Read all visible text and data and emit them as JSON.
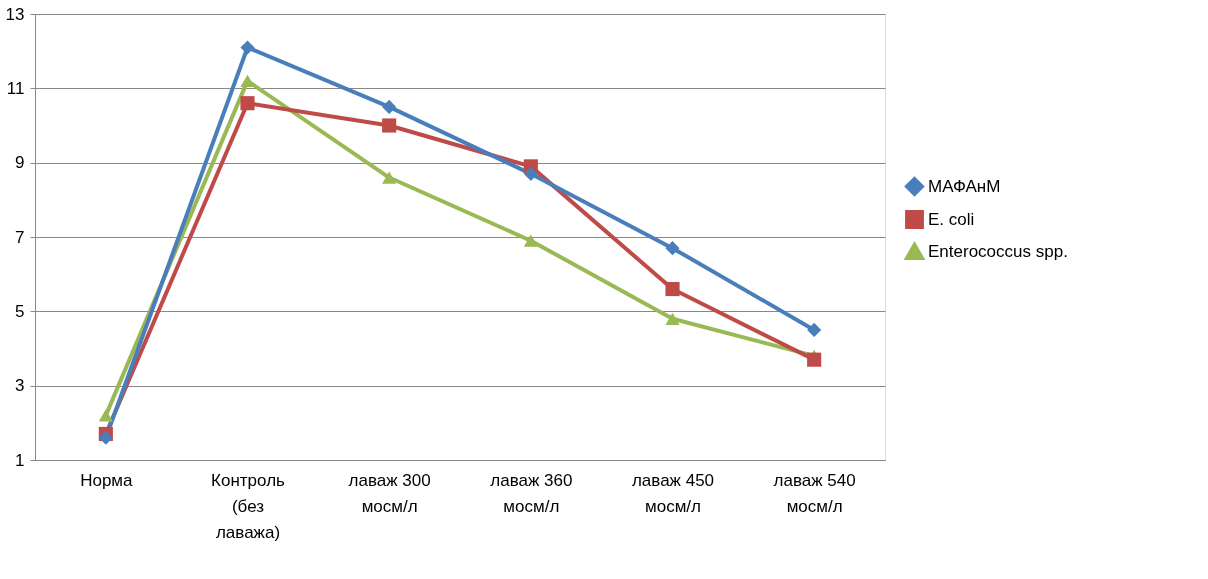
{
  "chart_data": {
    "type": "line",
    "categories": [
      "Норма",
      "Контроль (без лаважа)",
      "лаваж 300 мосм/л",
      "лаваж 360 мосм/л",
      "лаваж 450 мосм/л",
      "лаваж 540 мосм/л"
    ],
    "series": [
      {
        "name": "МАФАнМ",
        "color": "#4a7ebb",
        "marker": "diamond",
        "values": [
          1.6,
          12.1,
          10.5,
          8.7,
          6.7,
          4.5
        ]
      },
      {
        "name": "E. coli",
        "color": "#be4b48",
        "marker": "square",
        "values": [
          1.7,
          10.6,
          10.0,
          8.9,
          5.6,
          3.7
        ]
      },
      {
        "name": "Enterococcus spp.",
        "color": "#98b954",
        "marker": "triangle",
        "values": [
          2.2,
          11.2,
          8.6,
          6.9,
          4.8,
          3.8
        ]
      }
    ],
    "ylim": [
      1,
      13
    ],
    "yticks": [
      1,
      3,
      5,
      7,
      9,
      11,
      13
    ],
    "grid": "y",
    "legend": "right",
    "line_style": "solid"
  }
}
